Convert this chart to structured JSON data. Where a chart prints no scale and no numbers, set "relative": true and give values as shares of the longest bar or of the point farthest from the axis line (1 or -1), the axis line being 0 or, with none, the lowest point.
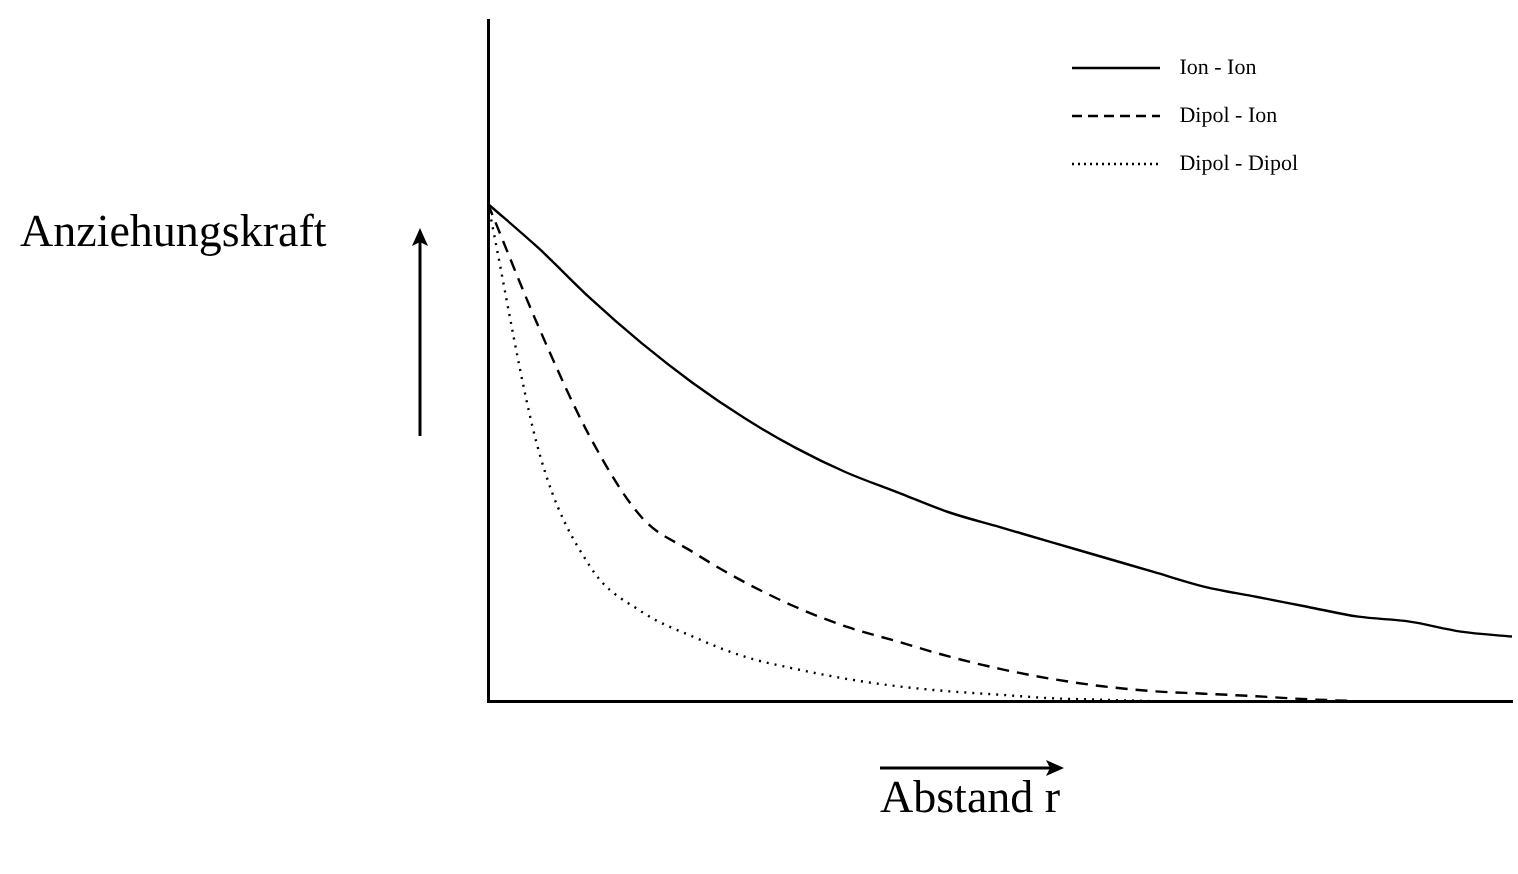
{
  "chart_data": {
    "type": "line",
    "relative": true,
    "xlabel": "Abstand r",
    "ylabel": "Anziehungskraft",
    "legend": "top right",
    "marker": "none",
    "grid": false,
    "categories": [
      null,
      null,
      null,
      null,
      null,
      null,
      null,
      null,
      null,
      null,
      null,
      null,
      null,
      null,
      null,
      null,
      null,
      null,
      null,
      null,
      null
    ],
    "series": [
      {
        "name": "Ion - Ion",
        "color": "#000000",
        "line_style": "solid",
        "values": [
          1.0,
          0.91,
          0.81,
          0.72,
          0.64,
          0.57,
          0.51,
          0.46,
          0.42,
          0.38,
          0.35,
          0.32,
          0.29,
          0.26,
          0.23,
          0.21,
          0.19,
          0.17,
          0.16,
          0.14,
          0.13
        ]
      },
      {
        "name": "Dipol - Ion",
        "color": "#000000",
        "line_style": "dashed",
        "values": [
          1.0,
          0.75,
          0.53,
          0.37,
          0.3,
          0.24,
          0.19,
          0.15,
          0.12,
          0.09,
          0.065,
          0.045,
          0.03,
          0.02,
          0.015,
          0.01,
          0.004,
          0,
          null,
          null,
          null
        ]
      },
      {
        "name": "Dipol - Dipol",
        "color": "#000000",
        "line_style": "dotted",
        "values": [
          1.0,
          0.5,
          0.27,
          0.18,
          0.13,
          0.09,
          0.065,
          0.045,
          0.03,
          0.02,
          0.013,
          0.006,
          0.003,
          0,
          null,
          null,
          null,
          null,
          null,
          null,
          null
        ]
      }
    ]
  }
}
